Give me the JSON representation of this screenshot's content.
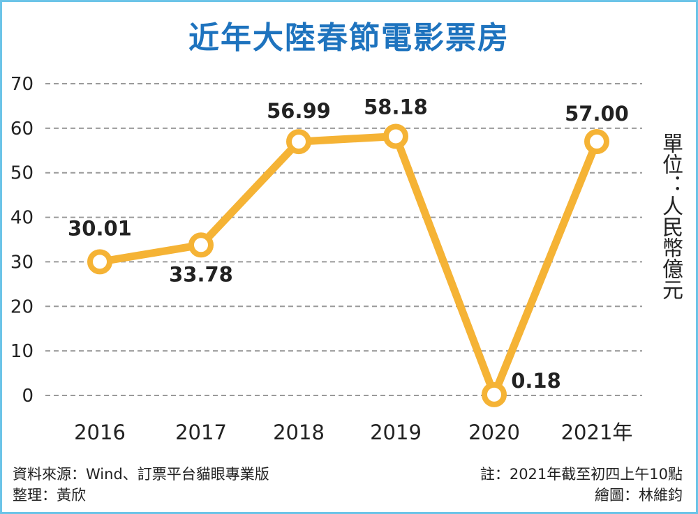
{
  "title": "近年大陸春節電影票房",
  "unit_label": "單位：人民幣億元",
  "source": "資料來源：Wind、訂票平台貓眼專業版",
  "editor": "整理：黃欣",
  "note": "註：2021年截至初四上午10點",
  "illustrator": "繪圖：林維鈞",
  "colors": {
    "title": "#1e73be",
    "line": "#f5b335",
    "grid": "#9a9a9a",
    "frame": "#6cc4e8"
  },
  "chart_data": {
    "type": "line",
    "title": "近年大陸春節電影票房",
    "categories": [
      "2016",
      "2017",
      "2018",
      "2019",
      "2020",
      "2021年"
    ],
    "values": [
      30.01,
      33.78,
      56.99,
      58.18,
      0.18,
      57.0
    ],
    "value_labels": [
      "30.01",
      "33.78",
      "56.99",
      "58.18",
      "0.18",
      "57.00"
    ],
    "ylabel": "單位：人民幣億元",
    "yticks": [
      "0",
      "10",
      "20",
      "30",
      "40",
      "50",
      "60",
      "70"
    ],
    "ylim": [
      0,
      70
    ],
    "grid": true
  }
}
